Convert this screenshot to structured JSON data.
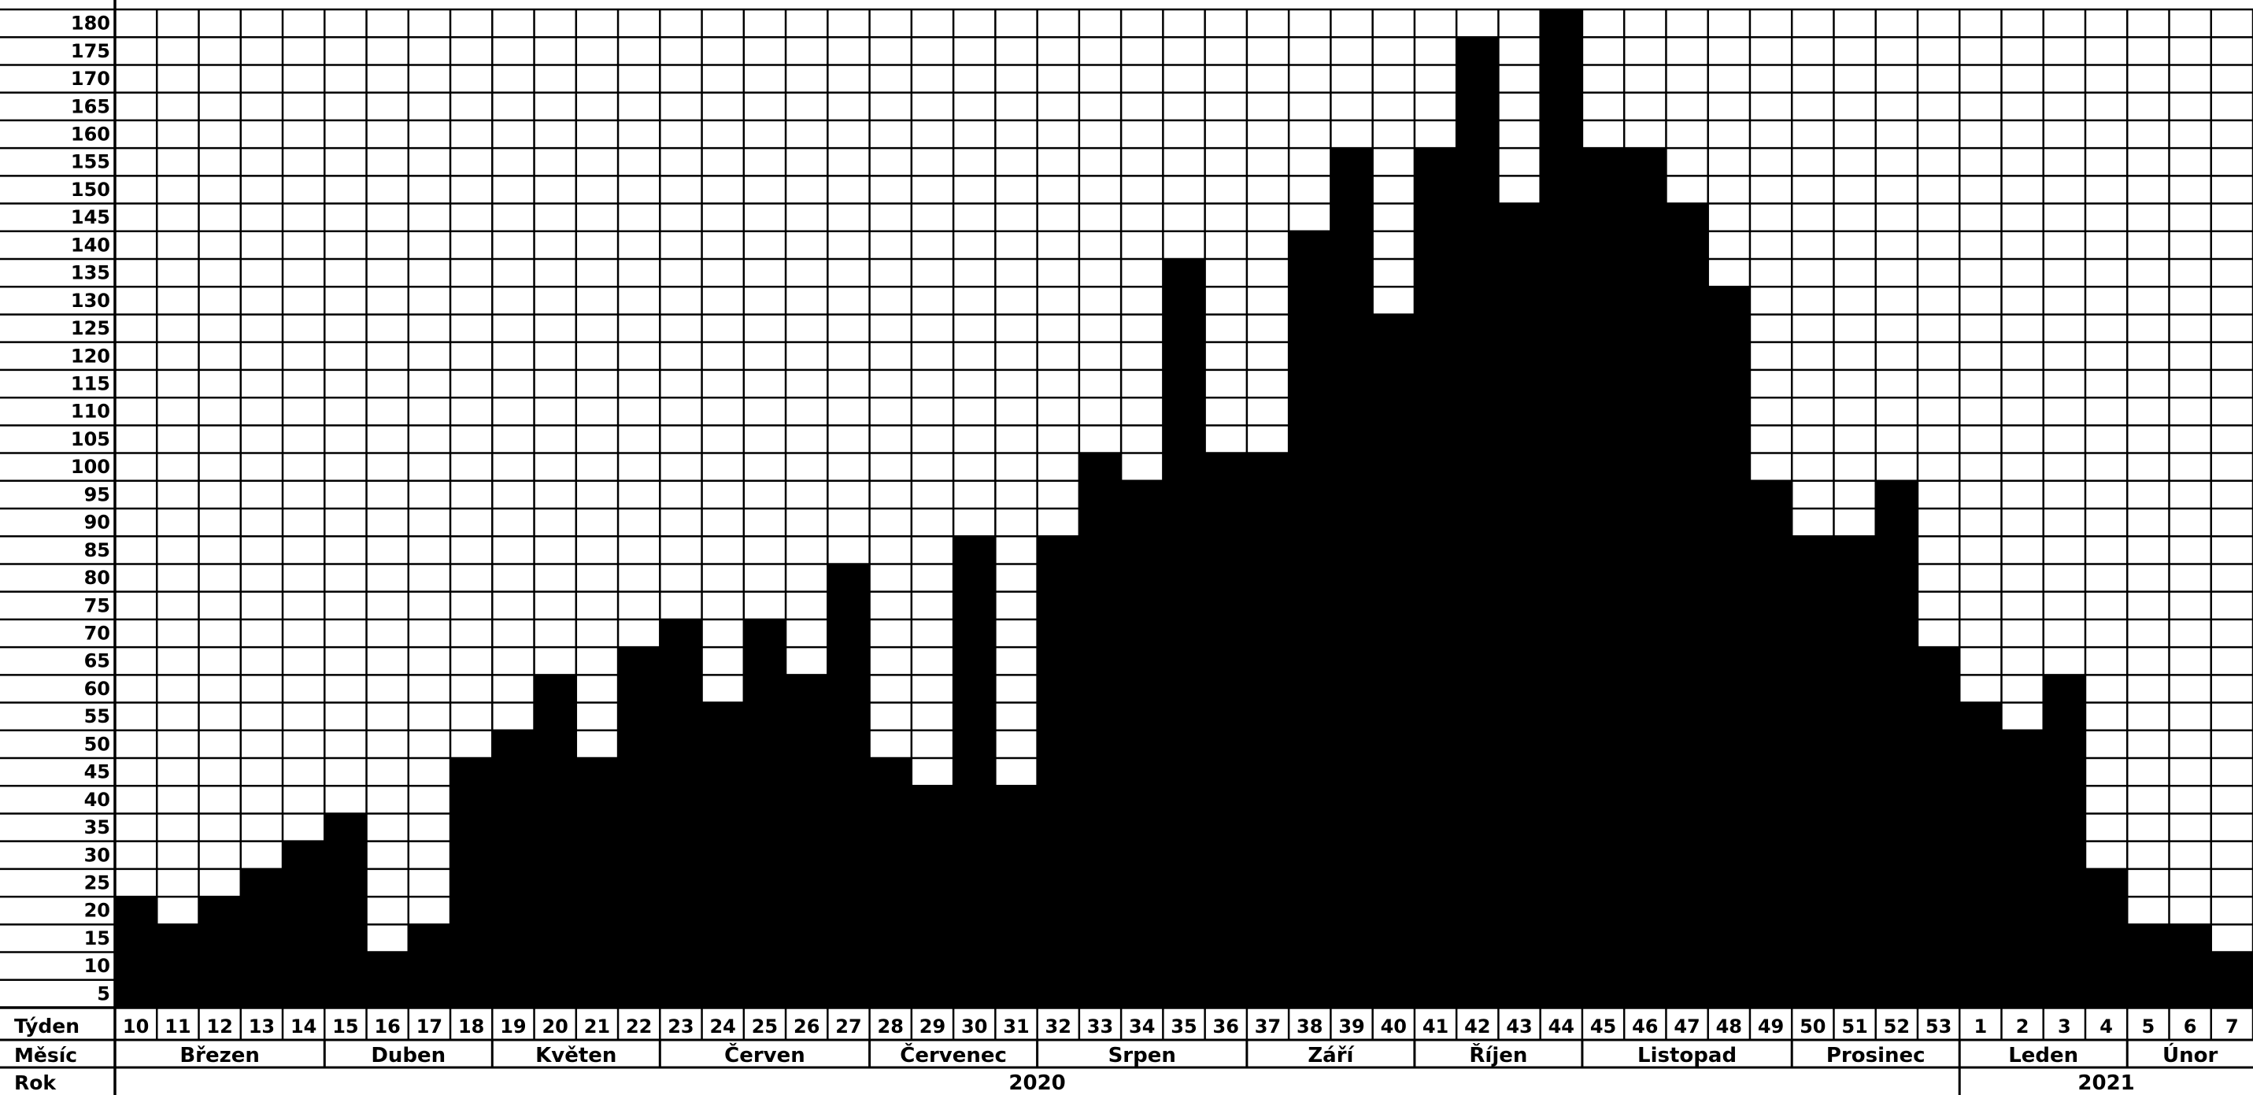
{
  "chart_data": {
    "type": "bar",
    "ylim": [
      0,
      180
    ],
    "ytick_step": 5,
    "grid": true,
    "bar_color": "#000000",
    "grid_color": "#000000",
    "row_labels": {
      "week": "Týden",
      "month": "Měsíc",
      "year": "Rok"
    },
    "categories": [
      "10",
      "11",
      "12",
      "13",
      "14",
      "15",
      "16",
      "17",
      "18",
      "19",
      "20",
      "21",
      "22",
      "23",
      "24",
      "25",
      "26",
      "27",
      "28",
      "29",
      "30",
      "31",
      "32",
      "33",
      "34",
      "35",
      "36",
      "37",
      "38",
      "39",
      "40",
      "41",
      "42",
      "43",
      "44",
      "45",
      "46",
      "47",
      "48",
      "49",
      "50",
      "51",
      "52",
      "53",
      "1",
      "2",
      "3",
      "4",
      "5",
      "6",
      "7"
    ],
    "values": [
      20,
      15,
      20,
      25,
      30,
      35,
      10,
      15,
      45,
      50,
      60,
      45,
      65,
      70,
      55,
      70,
      60,
      80,
      45,
      40,
      85,
      40,
      85,
      100,
      95,
      135,
      100,
      100,
      140,
      155,
      125,
      155,
      175,
      145,
      180,
      155,
      155,
      145,
      130,
      95,
      85,
      85,
      95,
      65,
      55,
      50,
      60,
      25,
      15,
      15,
      10
    ],
    "months": [
      {
        "name": "Březen",
        "start": 0,
        "span": 5
      },
      {
        "name": "Duben",
        "start": 5,
        "span": 4
      },
      {
        "name": "Květen",
        "start": 9,
        "span": 4
      },
      {
        "name": "Červen",
        "start": 13,
        "span": 5
      },
      {
        "name": "Červenec",
        "start": 18,
        "span": 4
      },
      {
        "name": "Srpen",
        "start": 22,
        "span": 5
      },
      {
        "name": "Září",
        "start": 27,
        "span": 4
      },
      {
        "name": "Říjen",
        "start": 31,
        "span": 4
      },
      {
        "name": "Listopad",
        "start": 35,
        "span": 5
      },
      {
        "name": "Prosinec",
        "start": 40,
        "span": 4
      },
      {
        "name": "Leden",
        "start": 44,
        "span": 4
      },
      {
        "name": "Únor",
        "start": 48,
        "span": 3
      }
    ],
    "years": [
      {
        "name": "2020",
        "start": 0,
        "span": 44
      },
      {
        "name": "2021",
        "start": 44,
        "span": 7
      }
    ]
  }
}
